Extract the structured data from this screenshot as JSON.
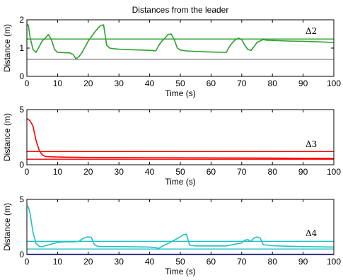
{
  "chart_data": [
    {
      "type": "line",
      "title": "Distances from the leader",
      "xlabel": "Time (s)",
      "ylabel": "Distance (m)",
      "xlim": [
        0,
        100
      ],
      "ylim": [
        0,
        2
      ],
      "xticks": [
        0,
        10,
        20,
        30,
        40,
        50,
        60,
        70,
        80,
        90,
        100
      ],
      "yticks": [
        0,
        1,
        2
      ],
      "annotation": "Δ2",
      "series": [
        {
          "color": "#2ca02c",
          "style": "trajectory",
          "x": [
            0,
            0.5,
            1,
            2,
            3,
            4,
            5,
            6,
            7,
            8,
            9,
            10,
            12,
            14,
            15,
            16,
            17,
            18,
            19,
            20,
            21,
            22,
            23,
            24,
            25,
            26,
            27,
            28,
            30,
            35,
            40,
            42,
            43,
            44,
            45,
            46,
            47,
            48,
            49,
            50,
            52,
            55,
            60,
            64,
            65,
            66,
            67,
            68,
            69,
            70,
            71,
            72,
            73,
            74,
            75,
            76,
            77,
            78,
            80,
            85,
            90,
            95,
            100
          ],
          "y": [
            1.85,
            1.8,
            1.4,
            0.95,
            0.85,
            1.05,
            1.25,
            1.35,
            1.48,
            1.3,
            0.95,
            0.85,
            0.84,
            0.83,
            0.78,
            0.62,
            0.7,
            0.85,
            1.05,
            1.25,
            1.4,
            1.55,
            1.68,
            1.8,
            1.82,
            1.1,
            1.0,
            0.98,
            0.96,
            0.94,
            0.92,
            0.9,
            1.1,
            1.25,
            1.35,
            1.48,
            1.5,
            1.3,
            1.0,
            0.93,
            0.9,
            0.88,
            0.86,
            0.85,
            0.85,
            1.05,
            1.2,
            1.3,
            1.35,
            1.3,
            1.1,
            0.95,
            0.92,
            1.05,
            1.2,
            1.25,
            1.3,
            1.28,
            1.27,
            1.25,
            1.24,
            1.22,
            1.2
          ]
        },
        {
          "color": "#2ca02c",
          "style": "reference",
          "x": [
            0,
            100
          ],
          "y": [
            1.32,
            1.32
          ]
        },
        {
          "color": "#808080",
          "style": "reference",
          "x": [
            0,
            100
          ],
          "y": [
            0.6,
            0.6
          ]
        }
      ]
    },
    {
      "type": "line",
      "title": "",
      "xlabel": "Time (s)",
      "ylabel": "Distance (m)",
      "xlim": [
        0,
        100
      ],
      "ylim": [
        0,
        5
      ],
      "xticks": [
        0,
        10,
        20,
        30,
        40,
        50,
        60,
        70,
        80,
        90,
        100
      ],
      "yticks": [
        0,
        5
      ],
      "annotation": "Δ3",
      "series": [
        {
          "color": "#ff0000",
          "style": "trajectory",
          "x": [
            0,
            1,
            2,
            3,
            4,
            5,
            6,
            8,
            10,
            15,
            20,
            40,
            60,
            80,
            100
          ],
          "y": [
            4.2,
            4.0,
            3.5,
            2.2,
            1.3,
            0.9,
            0.75,
            0.72,
            0.7,
            0.68,
            0.66,
            0.64,
            0.62,
            0.6,
            0.58
          ]
        },
        {
          "color": "#ff0000",
          "style": "reference",
          "x": [
            0,
            100
          ],
          "y": [
            1.2,
            1.2
          ]
        },
        {
          "color": "#ff0000",
          "style": "reference",
          "x": [
            0,
            100
          ],
          "y": [
            0.5,
            0.5
          ]
        }
      ]
    },
    {
      "type": "line",
      "title": "",
      "xlabel": "Time (s)",
      "ylabel": "Distance (m)",
      "xlim": [
        0,
        100
      ],
      "ylim": [
        0,
        5
      ],
      "xticks": [
        0,
        10,
        20,
        30,
        40,
        50,
        60,
        70,
        80,
        90,
        100
      ],
      "yticks": [
        0,
        5
      ],
      "annotation": "Δ4",
      "series": [
        {
          "color": "#20c0c0",
          "style": "trajectory",
          "x": [
            0,
            0.5,
            1,
            2,
            3,
            4,
            5,
            6,
            8,
            10,
            12,
            15,
            17,
            18,
            19,
            20,
            21,
            22,
            23,
            25,
            30,
            35,
            40,
            42,
            43,
            44,
            46,
            48,
            50,
            51,
            52,
            53,
            55,
            60,
            65,
            70,
            71,
            72,
            73,
            74,
            75,
            76,
            77,
            80,
            85,
            90,
            95,
            100
          ],
          "y": [
            4.4,
            4.3,
            3.8,
            2.0,
            1.0,
            0.75,
            0.7,
            0.8,
            0.95,
            1.1,
            1.15,
            1.15,
            1.2,
            1.4,
            1.55,
            1.6,
            1.55,
            0.9,
            0.75,
            0.72,
            0.72,
            0.7,
            0.68,
            0.62,
            0.55,
            0.75,
            1.0,
            1.3,
            1.6,
            1.8,
            1.85,
            0.85,
            0.78,
            0.78,
            0.78,
            1.05,
            1.3,
            1.35,
            1.2,
            1.5,
            1.6,
            1.5,
            0.9,
            0.8,
            0.75,
            0.72,
            0.7,
            0.68
          ]
        },
        {
          "color": "#20c0c0",
          "style": "reference",
          "x": [
            0,
            100
          ],
          "y": [
            1.2,
            1.2
          ]
        },
        {
          "color": "#20c0c0",
          "style": "reference",
          "x": [
            0,
            100
          ],
          "y": [
            0.5,
            0.5
          ]
        },
        {
          "color": "#0000ff",
          "style": "reference",
          "x": [
            0,
            100
          ],
          "y": [
            0.03,
            0.03
          ]
        }
      ]
    }
  ]
}
